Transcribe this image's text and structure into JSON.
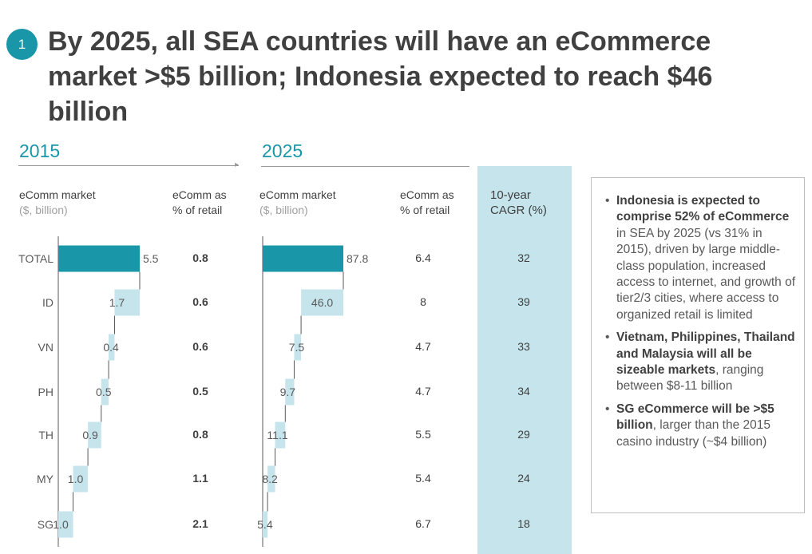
{
  "slide": {
    "badge": "1",
    "title": "By 2025, all SEA countries will have an eCommerce market >$5 billion; Indonesia expected to reach $46 billion"
  },
  "headers": {
    "year_2015": "2015",
    "year_2025": "2025",
    "ecomm_market": "eComm market",
    "ecomm_market_unit": "($, billion)",
    "pct_retail_1": "eComm as",
    "pct_retail_2": "% of retail",
    "cagr_1": "10-year",
    "cagr_2": "CAGR (%)"
  },
  "colors": {
    "total_bar": "#1996a8",
    "country_bar": "#c5e4ec",
    "cagr_band": "#c5e4ec",
    "accent": "#1996a8"
  },
  "chart_data": {
    "type": "waterfall",
    "categories": [
      "TOTAL",
      "ID",
      "VN",
      "PH",
      "TH",
      "MY",
      "SG"
    ],
    "series": [
      {
        "name": "2015",
        "values": [
          5.5,
          1.7,
          0.4,
          0.5,
          0.9,
          1.0,
          1.0
        ]
      },
      {
        "name": "2025",
        "values": [
          87.8,
          46.0,
          7.5,
          9.7,
          11.1,
          8.2,
          5.4
        ]
      }
    ],
    "pct_retail_2015": [
      "0.8",
      "0.6",
      "0.6",
      "0.5",
      "0.8",
      "1.1",
      "2.1"
    ],
    "pct_retail_2025": [
      "6.4",
      "8",
      "4.7",
      "4.7",
      "5.5",
      "5.4",
      "6.7"
    ],
    "cagr": [
      "32",
      "39",
      "33",
      "34",
      "29",
      "24",
      "18"
    ]
  },
  "notes": [
    {
      "bold": "Indonesia is expected to comprise 52% of eCommerce",
      "text": " in SEA by 2025 (vs 31% in 2015), driven by large middle-class population, increased access to internet, and growth of tier2/3 cities, where access to organized retail is limited"
    },
    {
      "bold": "Vietnam, Philippines, Thailand and Malaysia will all be sizeable markets",
      "text": ", ranging between $8-11 billion"
    },
    {
      "bold": "SG eCommerce will be >$5 billion",
      "text": ", larger than the 2015 casino industry (~$4 billion)"
    }
  ]
}
